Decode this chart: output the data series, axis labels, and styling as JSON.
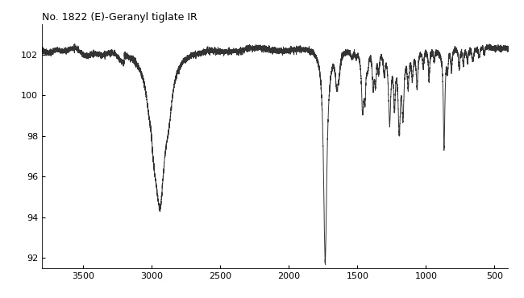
{
  "title": "No. 1822 (E)-Geranyl tiglate IR",
  "xlabel": "",
  "ylabel": "",
  "xlim": [
    3800,
    400
  ],
  "ylim": [
    91.5,
    103.5
  ],
  "xticks": [
    3500,
    3000,
    2500,
    2000,
    1500,
    1000,
    500
  ],
  "yticks": [
    92,
    94,
    96,
    98,
    100,
    102
  ],
  "background_color": "#ffffff",
  "line_color": "#333333",
  "title_fontsize": 9
}
